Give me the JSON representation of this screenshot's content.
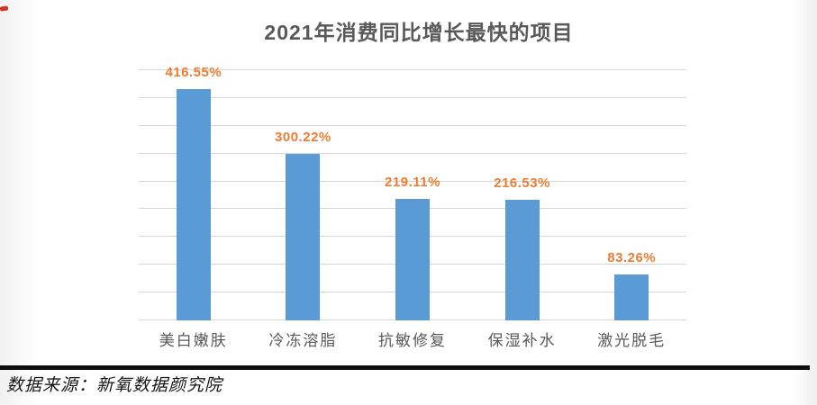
{
  "chart_data": {
    "type": "bar",
    "title": "2021年消费同比增长最快的项目",
    "categories": [
      "美白嫩肤",
      "冷冻溶脂",
      "抗敏修复",
      "保湿补水",
      "激光脱毛"
    ],
    "values": [
      416.55,
      300.22,
      219.11,
      216.53,
      83.26
    ],
    "value_labels": [
      "416.55%",
      "300.22%",
      "219.11%",
      "216.53%",
      "83.26%"
    ],
    "xlabel": "",
    "ylabel": "",
    "ylim": [
      0,
      450
    ],
    "gridline_step": 50,
    "grid": true,
    "legend_position": "none",
    "bar_color": "#5b9bd5",
    "value_label_color": "#ed7d31",
    "axis_text_color": "#595959",
    "gridline_color": "#d6d6d6",
    "title_color": "#595959"
  },
  "footer": {
    "source_text": "数据来源：新氧数据颜究院"
  }
}
